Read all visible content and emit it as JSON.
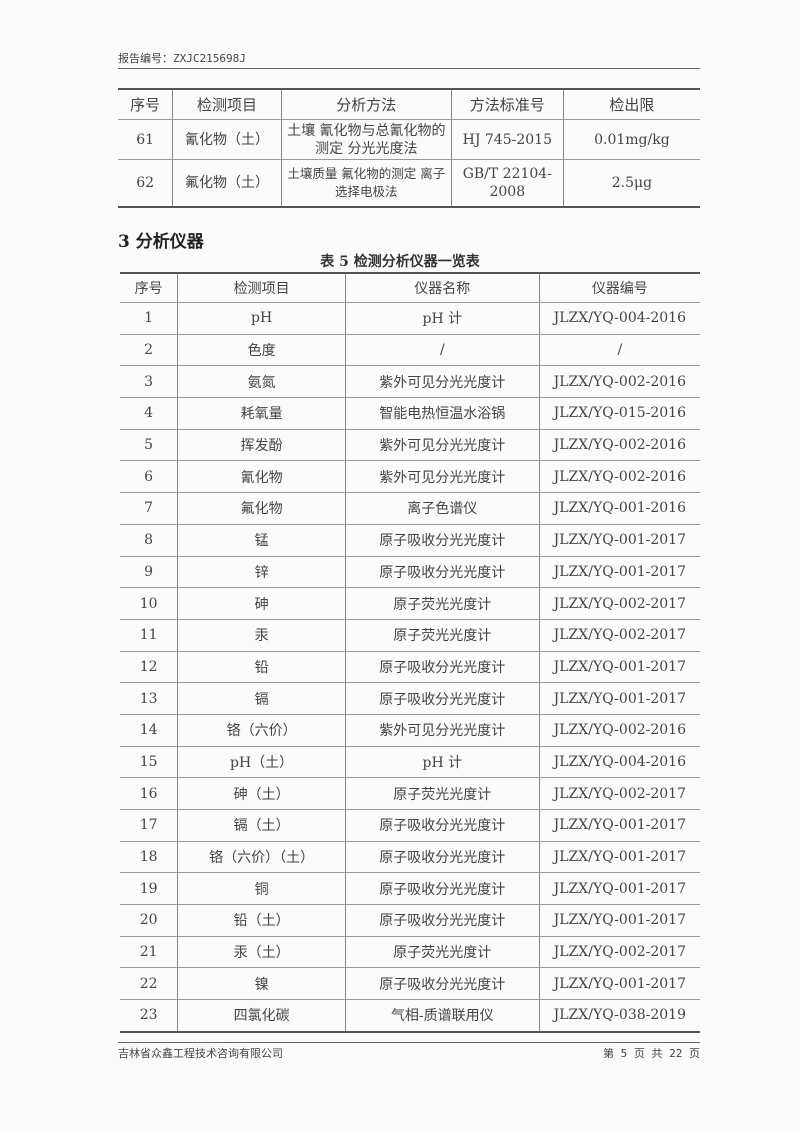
{
  "header": {
    "report_no": "报告编号：ZXJC215698J"
  },
  "table4": {
    "headers": [
      "序号",
      "检测项目",
      "分析方法",
      "方法标准号",
      "检出限"
    ],
    "rows": [
      [
        "61",
        "氰化物（土）",
        "土壤 氰化物与总氰化物的测定 分光光度法",
        "HJ 745-2015",
        "0.01mg/kg"
      ],
      [
        "62",
        "氟化物（土）",
        "土壤质量 氟化物的测定 离子选择电极法",
        "GB/T 22104-2008",
        "2.5μg"
      ]
    ]
  },
  "section_title": "3 分析仪器",
  "table5": {
    "caption": "表 5  检测分析仪器一览表",
    "headers": [
      "序号",
      "检测项目",
      "仪器名称",
      "仪器编号"
    ],
    "rows": [
      [
        "1",
        "pH",
        "pH 计",
        "JLZX/YQ-004-2016"
      ],
      [
        "2",
        "色度",
        "/",
        "/"
      ],
      [
        "3",
        "氨氮",
        "紫外可见分光光度计",
        "JLZX/YQ-002-2016"
      ],
      [
        "4",
        "耗氧量",
        "智能电热恒温水浴锅",
        "JLZX/YQ-015-2016"
      ],
      [
        "5",
        "挥发酚",
        "紫外可见分光光度计",
        "JLZX/YQ-002-2016"
      ],
      [
        "6",
        "氰化物",
        "紫外可见分光光度计",
        "JLZX/YQ-002-2016"
      ],
      [
        "7",
        "氟化物",
        "离子色谱仪",
        "JLZX/YQ-001-2016"
      ],
      [
        "8",
        "锰",
        "原子吸收分光光度计",
        "JLZX/YQ-001-2017"
      ],
      [
        "9",
        "锌",
        "原子吸收分光光度计",
        "JLZX/YQ-001-2017"
      ],
      [
        "10",
        "砷",
        "原子荧光光度计",
        "JLZX/YQ-002-2017"
      ],
      [
        "11",
        "汞",
        "原子荧光光度计",
        "JLZX/YQ-002-2017"
      ],
      [
        "12",
        "铅",
        "原子吸收分光光度计",
        "JLZX/YQ-001-2017"
      ],
      [
        "13",
        "镉",
        "原子吸收分光光度计",
        "JLZX/YQ-001-2017"
      ],
      [
        "14",
        "铬（六价）",
        "紫外可见分光光度计",
        "JLZX/YQ-002-2016"
      ],
      [
        "15",
        "pH（土）",
        "pH 计",
        "JLZX/YQ-004-2016"
      ],
      [
        "16",
        "砷（土）",
        "原子荧光光度计",
        "JLZX/YQ-002-2017"
      ],
      [
        "17",
        "镉（土）",
        "原子吸收分光光度计",
        "JLZX/YQ-001-2017"
      ],
      [
        "18",
        "铬（六价）（土）",
        "原子吸收分光光度计",
        "JLZX/YQ-001-2017"
      ],
      [
        "19",
        "铜",
        "原子吸收分光光度计",
        "JLZX/YQ-001-2017"
      ],
      [
        "20",
        "铅（土）",
        "原子吸收分光光度计",
        "JLZX/YQ-001-2017"
      ],
      [
        "21",
        "汞（土）",
        "原子荧光光度计",
        "JLZX/YQ-002-2017"
      ],
      [
        "22",
        "镍",
        "原子吸收分光光度计",
        "JLZX/YQ-001-2017"
      ],
      [
        "23",
        "四氯化碳",
        "气相-质谱联用仪",
        "JLZX/YQ-038-2019"
      ]
    ]
  },
  "footer": {
    "company": "吉林省众鑫工程技术咨询有限公司",
    "page": "第 5 页 共 22 页"
  }
}
